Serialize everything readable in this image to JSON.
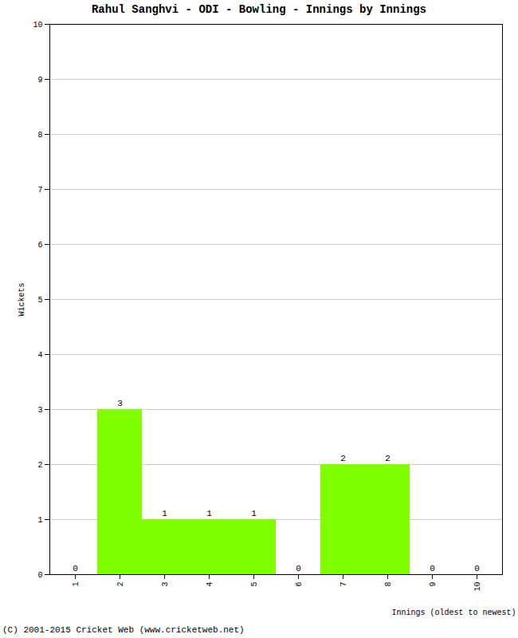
{
  "chart_data": {
    "type": "bar",
    "title": "Rahul Sanghvi - ODI - Bowling - Innings by Innings",
    "caption": "(C) 2001-2015 Cricket Web (www.cricketweb.net)",
    "x_label": "Innings (oldest to newest)",
    "y_label": "Wickets",
    "categories": [
      1,
      2,
      3,
      4,
      5,
      6,
      7,
      8,
      9,
      10
    ],
    "values": [
      0,
      3,
      1,
      1,
      1,
      0,
      2,
      2,
      0,
      0
    ],
    "color": "#80ff00",
    "ylim": [
      0,
      10
    ],
    "yticks": [
      0,
      1,
      2,
      3,
      4,
      5,
      6,
      7,
      8,
      9,
      10
    ],
    "grid": true,
    "data_labels": true
  }
}
